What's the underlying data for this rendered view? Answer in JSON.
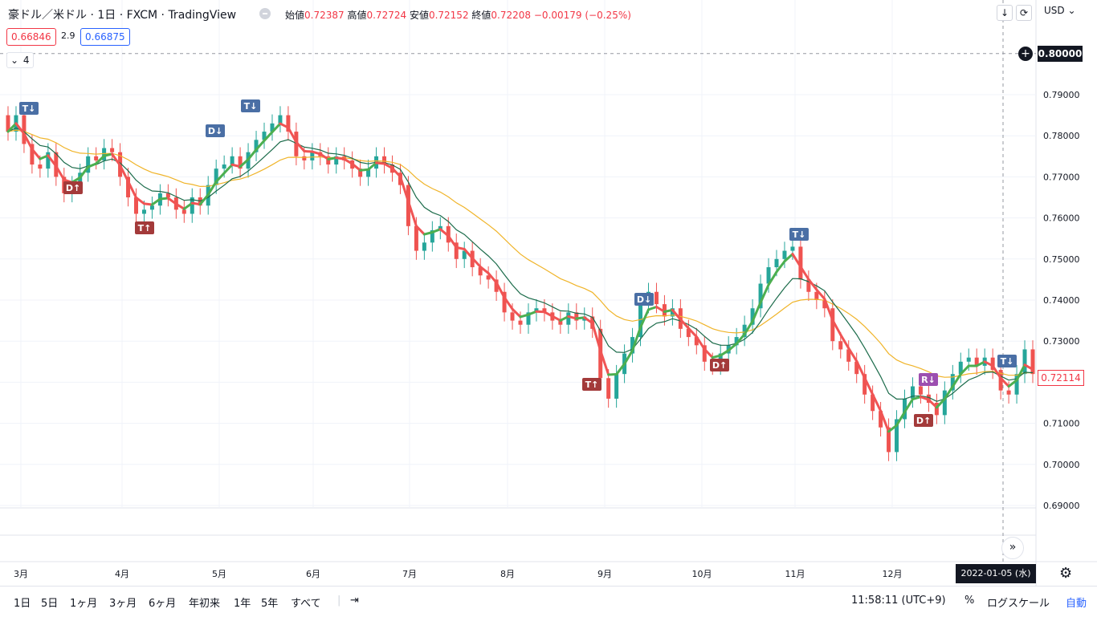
{
  "header": {
    "title": "豪ドル／米ドル · 1日 · FXCM · TradingView",
    "ohlc": [
      {
        "label": "始値",
        "value": "0.72387"
      },
      {
        "label": "高値",
        "value": "0.72724"
      },
      {
        "label": "安値",
        "value": "0.72152"
      },
      {
        "label": "終値",
        "value": "0.72208"
      },
      {
        "label": "",
        "value": "−0.00179 (−0.25%)"
      }
    ],
    "bid": "0.66846",
    "spread": "2.9",
    "ask": "0.66875",
    "indicator_count": "4",
    "currency": "USD"
  },
  "price_axis": {
    "labels": [
      "0.79000",
      "0.78000",
      "0.77000",
      "0.76000",
      "0.75000",
      "0.74000",
      "0.73000",
      "0.72000",
      "0.71000",
      "0.70000",
      "0.69000"
    ],
    "crosshair_price": "0.80000",
    "current_price": "0.72114"
  },
  "time_axis": {
    "labels": [
      "3月",
      "4月",
      "5月",
      "6月",
      "7月",
      "8月",
      "9月",
      "10月",
      "11月",
      "12月"
    ],
    "crosshair_date": "2022-01-05 (水)"
  },
  "bottom_bar": {
    "timeframes": [
      "1日",
      "5日",
      "1ヶ月",
      "3ヶ月",
      "6ヶ月",
      "年初来",
      "1年",
      "5年",
      "すべて"
    ],
    "clock": "11:58:11 (UTC+9)",
    "percent": "%",
    "log_scale": "ログスケール",
    "auto": "自動"
  },
  "colors": {
    "up": "#26a69a",
    "down": "#ef5350",
    "ema_fast": "#1b6b4a",
    "ema_slow": "#f0b429",
    "signal_up": "#a33a3a",
    "signal_down": "#4a6fa5",
    "signal_r": "#9c4fb0"
  },
  "chart_data": {
    "type": "candlestick",
    "ylim": [
      0.688,
      0.81
    ],
    "y_ticks": [
      0.79,
      0.78,
      0.77,
      0.76,
      0.75,
      0.74,
      0.73,
      0.72,
      0.71,
      0.7,
      0.69
    ],
    "x_month_labels": [
      "3月",
      "4月",
      "5月",
      "6月",
      "7月",
      "8月",
      "9月",
      "10月",
      "11月",
      "12月"
    ],
    "closes": [
      0.781,
      0.785,
      0.778,
      0.773,
      0.772,
      0.776,
      0.77,
      0.766,
      0.768,
      0.771,
      0.775,
      0.774,
      0.777,
      0.776,
      0.77,
      0.765,
      0.761,
      0.762,
      0.763,
      0.766,
      0.765,
      0.762,
      0.761,
      0.765,
      0.763,
      0.768,
      0.772,
      0.773,
      0.775,
      0.772,
      0.776,
      0.779,
      0.781,
      0.783,
      0.785,
      0.781,
      0.775,
      0.774,
      0.776,
      0.775,
      0.773,
      0.775,
      0.774,
      0.772,
      0.77,
      0.772,
      0.775,
      0.773,
      0.771,
      0.768,
      0.758,
      0.752,
      0.754,
      0.757,
      0.758,
      0.754,
      0.75,
      0.752,
      0.748,
      0.746,
      0.745,
      0.742,
      0.737,
      0.735,
      0.734,
      0.737,
      0.738,
      0.737,
      0.735,
      0.734,
      0.737,
      0.735,
      0.736,
      0.733,
      0.721,
      0.716,
      0.722,
      0.727,
      0.731,
      0.739,
      0.742,
      0.739,
      0.736,
      0.738,
      0.733,
      0.731,
      0.729,
      0.725,
      0.724,
      0.727,
      0.729,
      0.731,
      0.734,
      0.738,
      0.744,
      0.748,
      0.75,
      0.752,
      0.753,
      0.745,
      0.742,
      0.74,
      0.738,
      0.73,
      0.728,
      0.725,
      0.722,
      0.717,
      0.713,
      0.709,
      0.703,
      0.711,
      0.716,
      0.719,
      0.717,
      0.715,
      0.712,
      0.718,
      0.722,
      0.725,
      0.726,
      0.724,
      0.726,
      0.723,
      0.718,
      0.717,
      0.722,
      0.728,
      0.722
    ]
  },
  "signals": [
    {
      "label": "T↓"
    },
    {
      "label": "D↑"
    },
    {
      "label": "D↓"
    },
    {
      "label": "T↑"
    },
    {
      "label": "T↓"
    },
    {
      "label": "T↑"
    },
    {
      "label": "D↓"
    },
    {
      "label": "D↑"
    },
    {
      "label": "T↓"
    },
    {
      "label": "R↓"
    },
    {
      "label": "D↑"
    },
    {
      "label": "T↓"
    }
  ]
}
